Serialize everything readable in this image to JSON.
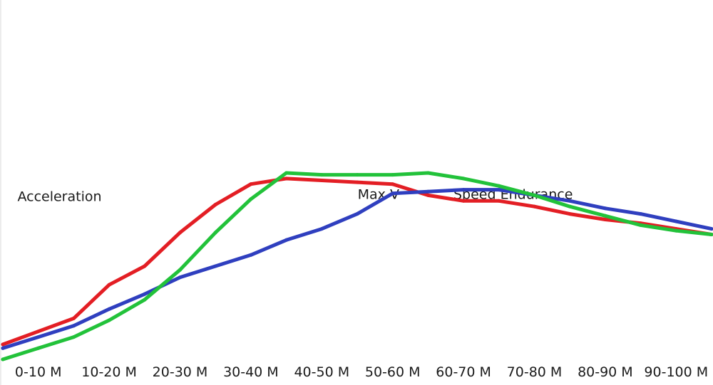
{
  "chart_data": {
    "type": "line",
    "title": "",
    "xlabel": "",
    "ylabel": "",
    "categories": [
      "0-10 M",
      "10-20 M",
      "20-30 M",
      "30-40 M",
      "40-50 M",
      "50-60 M",
      "60-70 M",
      "70-80 M",
      "80-90 M",
      "90-100 M"
    ],
    "x": [
      0,
      5,
      10,
      15,
      20,
      25,
      30,
      35,
      40,
      45,
      50,
      55,
      60,
      65,
      70,
      75,
      80,
      85,
      90,
      95,
      100
    ],
    "ylim": [
      0,
      1
    ],
    "grid": false,
    "annotations": [
      {
        "text": "Acceleration",
        "x": 8,
        "y": 0.85
      },
      {
        "text": "Max V",
        "x": 53,
        "y": 0.86
      },
      {
        "text": "Speed Endurance",
        "x": 72,
        "y": 0.86
      }
    ],
    "series": [
      {
        "color": "#e31e24",
        "values": [
          0.08,
          0.15,
          0.22,
          0.4,
          0.5,
          0.68,
          0.83,
          0.94,
          0.97,
          0.96,
          0.95,
          0.94,
          0.88,
          0.85,
          0.85,
          0.82,
          0.78,
          0.75,
          0.73,
          0.7,
          0.67
        ]
      },
      {
        "color": "#2f3fbf",
        "values": [
          0.06,
          0.12,
          0.18,
          0.27,
          0.35,
          0.44,
          0.5,
          0.56,
          0.64,
          0.7,
          0.78,
          0.89,
          0.9,
          0.91,
          0.91,
          0.88,
          0.85,
          0.81,
          0.78,
          0.74,
          0.7
        ]
      },
      {
        "color": "#22c23a",
        "values": [
          0.0,
          0.06,
          0.12,
          0.21,
          0.32,
          0.48,
          0.68,
          0.86,
          1.0,
          0.99,
          0.99,
          0.99,
          1.0,
          0.97,
          0.93,
          0.88,
          0.82,
          0.77,
          0.72,
          0.69,
          0.67
        ]
      }
    ]
  }
}
